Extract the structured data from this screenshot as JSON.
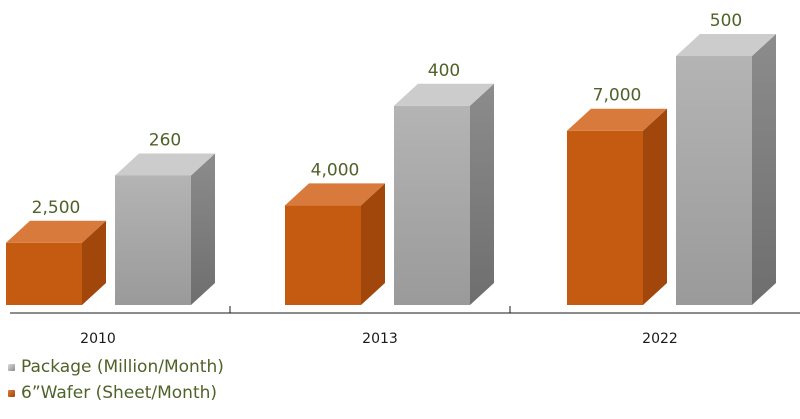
{
  "chart_data": {
    "type": "bar",
    "style": "3d-column",
    "categories": [
      "2010",
      "2013",
      "2022"
    ],
    "series": [
      {
        "name": "6”Wafer (Sheet/Month)",
        "values": [
          2500,
          4000,
          7000
        ],
        "value_labels": [
          "2,500",
          "4,000",
          "7,000"
        ],
        "color": "#c55a11",
        "ylim": [
          0,
          10000
        ]
      },
      {
        "name": "Package (Million/Month)",
        "values": [
          260,
          400,
          500
        ],
        "value_labels": [
          "260",
          "400",
          "500"
        ],
        "color": "#a6a6a6",
        "ylim": [
          0,
          500
        ]
      }
    ],
    "title": "",
    "xlabel": "",
    "ylabel": "",
    "grid": false,
    "legend_position": "bottom-left",
    "legend_order": [
      "Package (Million/Month)",
      "6”Wafer (Sheet/Month)"
    ]
  }
}
